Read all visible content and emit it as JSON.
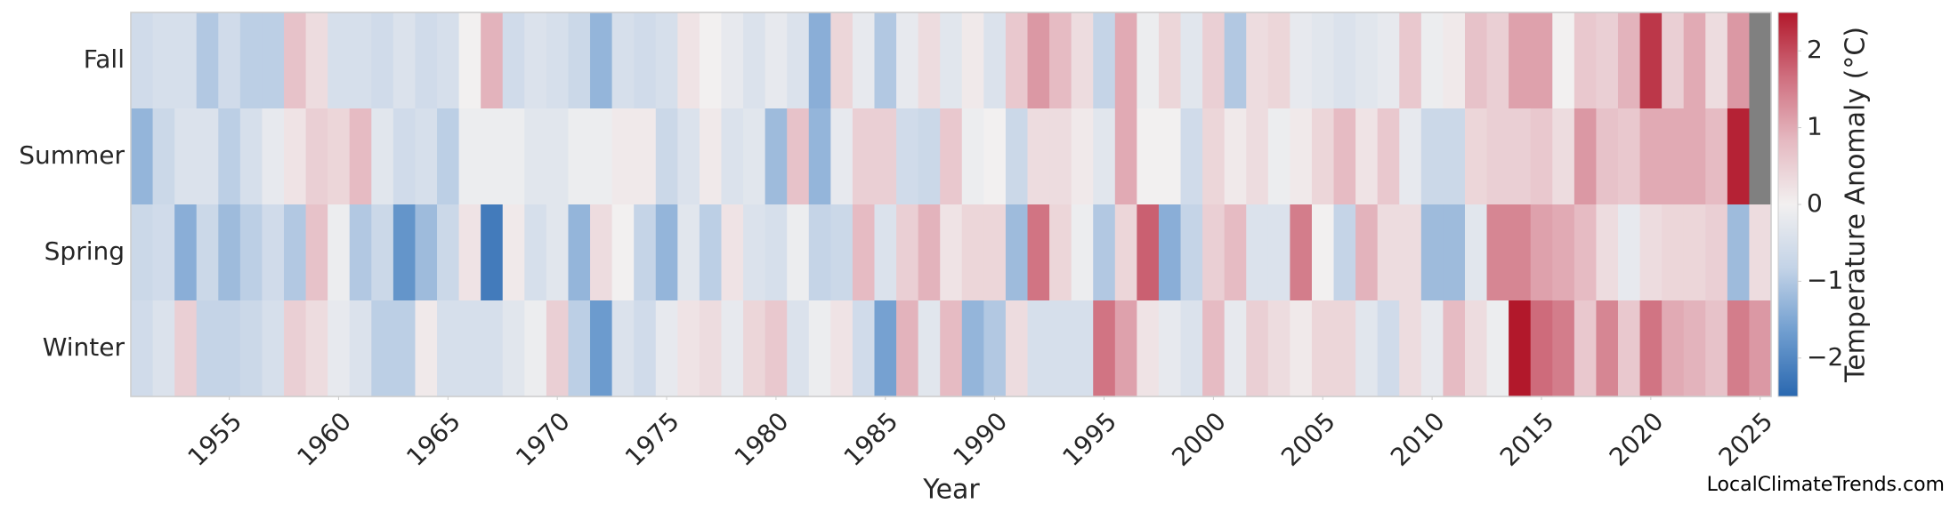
{
  "chart_data": {
    "type": "heatmap",
    "xlabel": "Year",
    "watermark": "LocalClimateTrends.com",
    "x": [
      1951,
      1952,
      1953,
      1954,
      1955,
      1956,
      1957,
      1958,
      1959,
      1960,
      1961,
      1962,
      1963,
      1964,
      1965,
      1966,
      1967,
      1968,
      1969,
      1970,
      1971,
      1972,
      1973,
      1974,
      1975,
      1976,
      1977,
      1978,
      1979,
      1980,
      1981,
      1982,
      1983,
      1984,
      1985,
      1986,
      1987,
      1988,
      1989,
      1990,
      1991,
      1992,
      1993,
      1994,
      1995,
      1996,
      1997,
      1998,
      1999,
      2000,
      2001,
      2002,
      2003,
      2004,
      2005,
      2006,
      2007,
      2008,
      2009,
      2010,
      2011,
      2012,
      2013,
      2014,
      2015,
      2016,
      2017,
      2018,
      2019,
      2020,
      2021,
      2022,
      2023,
      2024,
      2025
    ],
    "xlim": [
      1950.5,
      2025.5
    ],
    "xticks": [
      1955,
      1960,
      1965,
      1970,
      1975,
      1980,
      1985,
      1990,
      1995,
      2000,
      2005,
      2010,
      2015,
      2020,
      2025
    ],
    "series": [
      {
        "name": "Fall",
        "values": [
          -0.6,
          -0.5,
          -0.5,
          -1.0,
          -0.6,
          -0.9,
          -0.9,
          0.7,
          0.3,
          -0.5,
          -0.5,
          -0.6,
          -0.4,
          -0.6,
          -0.5,
          0.0,
          0.9,
          -0.6,
          -0.4,
          -0.5,
          -0.7,
          -1.3,
          -0.5,
          -0.6,
          -0.5,
          0.2,
          0.0,
          -0.2,
          -0.4,
          -0.2,
          -0.4,
          -1.4,
          0.4,
          -0.2,
          -1.0,
          -0.2,
          0.3,
          -0.3,
          0.1,
          -0.4,
          0.6,
          1.2,
          0.8,
          0.3,
          -0.8,
          1.0,
          -0.1,
          0.4,
          -0.3,
          0.5,
          -1.0,
          0.3,
          0.4,
          -0.2,
          -0.3,
          -0.4,
          -0.3,
          -0.2,
          0.6,
          -0.1,
          0.1,
          0.7,
          0.5,
          1.1,
          1.1,
          0.0,
          0.6,
          0.5,
          0.9,
          2.2,
          0.5,
          1.0,
          0.3,
          1.2,
          null
        ]
      },
      {
        "name": "Summer",
        "values": [
          -1.3,
          -0.7,
          -0.4,
          -0.4,
          -0.9,
          -0.5,
          -0.2,
          0.2,
          0.5,
          0.4,
          0.8,
          -0.3,
          -0.6,
          -0.5,
          -0.9,
          -0.1,
          -0.1,
          -0.1,
          -0.3,
          -0.3,
          -0.1,
          -0.1,
          0.1,
          0.1,
          -0.7,
          -0.4,
          0.1,
          -0.4,
          -0.3,
          -1.2,
          0.7,
          -1.3,
          -0.2,
          0.5,
          0.5,
          -0.6,
          -0.7,
          0.6,
          -0.1,
          0.0,
          -0.7,
          0.3,
          0.3,
          0.1,
          -0.3,
          1.0,
          0.0,
          0.0,
          -0.6,
          0.4,
          0.1,
          0.3,
          -0.1,
          0.1,
          0.4,
          0.8,
          0.2,
          0.6,
          -0.2,
          -0.7,
          -0.7,
          0.4,
          0.5,
          0.5,
          0.6,
          0.3,
          1.2,
          0.7,
          0.6,
          1.0,
          1.0,
          1.0,
          0.8,
          2.4,
          null
        ]
      },
      {
        "name": "Spring",
        "values": [
          -0.7,
          -0.6,
          -1.4,
          -0.7,
          -1.2,
          -0.9,
          -0.6,
          -1.0,
          0.7,
          -0.1,
          -1.0,
          -0.7,
          -1.8,
          -1.2,
          -0.7,
          0.2,
          -2.2,
          0.1,
          -0.5,
          -0.3,
          -1.3,
          0.3,
          0.0,
          -0.8,
          -1.3,
          -0.3,
          -0.9,
          0.2,
          -0.4,
          -0.5,
          -0.1,
          -0.8,
          -0.7,
          0.8,
          -0.4,
          0.5,
          0.9,
          0.2,
          0.4,
          0.4,
          -1.2,
          1.6,
          0.4,
          -0.1,
          -1.0,
          0.4,
          1.8,
          -1.4,
          -0.8,
          0.5,
          0.8,
          -0.4,
          -0.4,
          1.5,
          0.0,
          -0.8,
          0.9,
          0.3,
          0.3,
          -1.2,
          -1.2,
          -0.3,
          1.4,
          1.4,
          1.1,
          1.0,
          0.8,
          0.3,
          -0.2,
          0.3,
          0.4,
          0.4,
          0.5,
          -1.2,
          0.3
        ]
      },
      {
        "name": "Winter",
        "values": [
          -0.6,
          -0.4,
          0.5,
          -0.8,
          -0.8,
          -0.7,
          -0.5,
          0.5,
          0.3,
          -0.2,
          -0.4,
          -0.9,
          -0.9,
          0.1,
          -0.5,
          -0.5,
          -0.5,
          -0.3,
          -0.1,
          0.5,
          -0.9,
          -1.7,
          -0.4,
          -0.6,
          -0.2,
          0.2,
          0.3,
          -0.2,
          0.4,
          0.6,
          -0.4,
          -0.1,
          0.2,
          -0.6,
          -1.6,
          0.9,
          -0.3,
          0.8,
          -1.3,
          -1.0,
          0.3,
          -0.5,
          -0.5,
          -0.5,
          1.6,
          1.1,
          0.2,
          -0.2,
          -0.4,
          0.8,
          -0.2,
          0.5,
          0.3,
          0.1,
          0.4,
          0.4,
          -0.3,
          -0.6,
          0.3,
          -0.2,
          0.8,
          0.3,
          -0.1,
          2.5,
          1.7,
          1.5,
          0.6,
          1.4,
          0.6,
          1.6,
          1.0,
          0.9,
          0.7,
          1.5,
          1.2
        ]
      }
    ],
    "missing_color": "#808080",
    "colorbar": {
      "label": "Temperature Anomaly (°C)",
      "lim": [
        -2.5,
        2.5
      ],
      "ticks": [
        {
          "value": -2,
          "label": "−2"
        },
        {
          "value": -1,
          "label": "−1"
        },
        0,
        1,
        2
      ],
      "colors": [
        "#2a68b0",
        "#6f9dcf",
        "#c3d3e7",
        "#f2f0f0",
        "#e5b9c1",
        "#cf6e7e",
        "#b2182b"
      ]
    }
  }
}
